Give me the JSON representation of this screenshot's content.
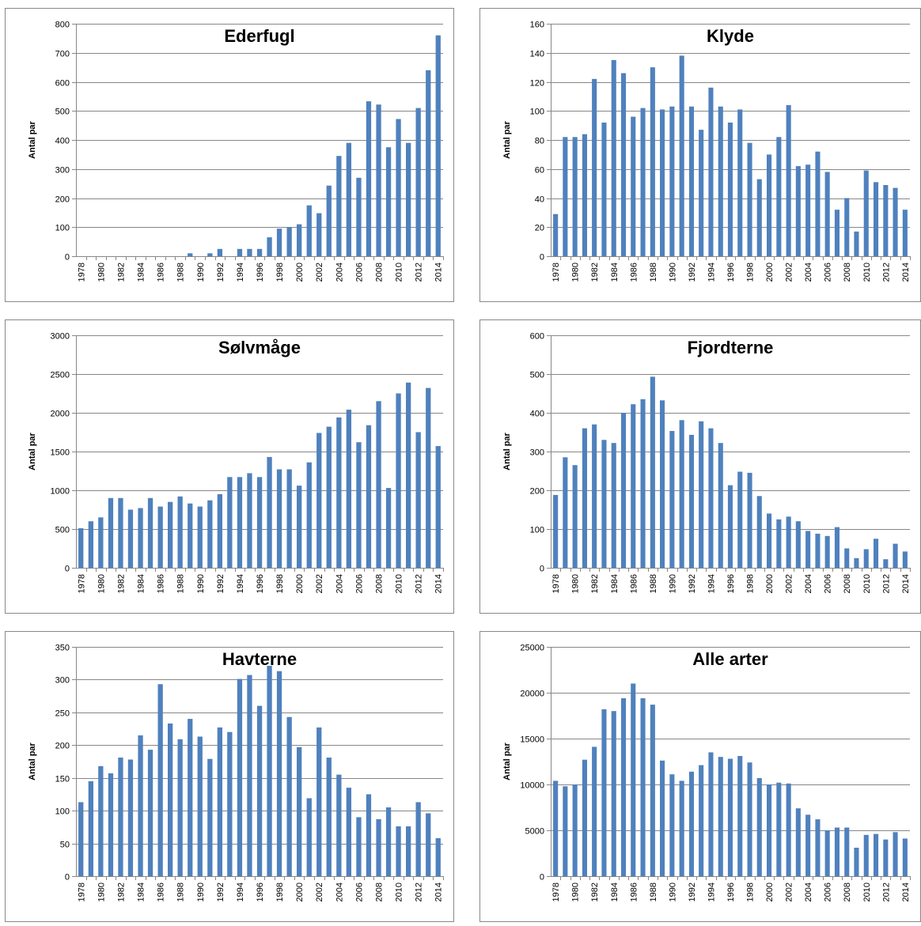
{
  "colors": {
    "bar": "#4f81bd",
    "grid": "#878787",
    "axis": "#878787",
    "frame": "#888888",
    "text": "#000000"
  },
  "ylabel_text": "Antal par",
  "chart_data": [
    {
      "type": "bar",
      "title": "Ederfugl",
      "xlabel": "",
      "ylabel": "Antal par",
      "ylim": [
        0,
        800
      ],
      "yticks": [
        0,
        100,
        200,
        300,
        400,
        500,
        600,
        700,
        800
      ],
      "x": [
        1978,
        1979,
        1980,
        1981,
        1982,
        1983,
        1984,
        1985,
        1986,
        1987,
        1988,
        1989,
        1990,
        1991,
        1992,
        1993,
        1994,
        1995,
        1996,
        1997,
        1998,
        1999,
        2000,
        2001,
        2002,
        2003,
        2004,
        2005,
        2006,
        2007,
        2008,
        2009,
        2010,
        2011,
        2012,
        2013,
        2014
      ],
      "xticklabels": [
        "1978",
        "1980",
        "1982",
        "1984",
        "1986",
        "1988",
        "1990",
        "1992",
        "1994",
        "1996",
        "1998",
        "2000",
        "2002",
        "2004",
        "2006",
        "2008",
        "2010",
        "2012",
        "2014"
      ],
      "values": [
        0,
        0,
        0,
        0,
        0,
        0,
        0,
        0,
        0,
        0,
        0,
        10,
        0,
        10,
        25,
        0,
        25,
        25,
        25,
        65,
        95,
        100,
        110,
        175,
        148,
        243,
        345,
        390,
        270,
        533,
        522,
        375,
        472,
        390,
        510,
        640,
        760
      ],
      "grid": true,
      "legend": "none"
    },
    {
      "type": "bar",
      "title": "Klyde",
      "xlabel": "",
      "ylabel": "Antal par",
      "ylim": [
        0,
        160
      ],
      "yticks": [
        0,
        20,
        40,
        60,
        80,
        100,
        120,
        140,
        160
      ],
      "x": [
        1978,
        1979,
        1980,
        1981,
        1982,
        1983,
        1984,
        1985,
        1986,
        1987,
        1988,
        1989,
        1990,
        1991,
        1992,
        1993,
        1994,
        1995,
        1996,
        1997,
        1998,
        1999,
        2000,
        2001,
        2002,
        2003,
        2004,
        2005,
        2006,
        2007,
        2008,
        2009,
        2010,
        2011,
        2012,
        2013,
        2014
      ],
      "xticklabels": [
        "1978",
        "1980",
        "1982",
        "1984",
        "1986",
        "1988",
        "1990",
        "1992",
        "1994",
        "1996",
        "1998",
        "2000",
        "2002",
        "2004",
        "2006",
        "2008",
        "2010",
        "2012",
        "2014"
      ],
      "values": [
        29,
        82,
        82,
        84,
        122,
        92,
        135,
        126,
        96,
        102,
        130,
        101,
        103,
        138,
        103,
        87,
        116,
        103,
        92,
        101,
        78,
        53,
        70,
        82,
        104,
        62,
        63,
        72,
        58,
        32,
        40,
        17,
        59,
        51,
        49,
        47,
        32
      ],
      "grid": true,
      "legend": "none"
    },
    {
      "type": "bar",
      "title": "Sølvmåge",
      "xlabel": "",
      "ylabel": "Antal par",
      "ylim": [
        0,
        3000
      ],
      "yticks": [
        0,
        500,
        1000,
        1500,
        2000,
        2500,
        3000
      ],
      "x": [
        1978,
        1979,
        1980,
        1981,
        1982,
        1983,
        1984,
        1985,
        1986,
        1987,
        1988,
        1989,
        1990,
        1991,
        1992,
        1993,
        1994,
        1995,
        1996,
        1997,
        1998,
        1999,
        2000,
        2001,
        2002,
        2003,
        2004,
        2005,
        2006,
        2007,
        2008,
        2009,
        2010,
        2011,
        2012,
        2013,
        2014
      ],
      "xticklabels": [
        "1978",
        "1980",
        "1982",
        "1984",
        "1986",
        "1988",
        "1990",
        "1992",
        "1994",
        "1996",
        "1998",
        "2000",
        "2002",
        "2004",
        "2006",
        "2008",
        "2010",
        "2012",
        "2014"
      ],
      "values": [
        510,
        600,
        650,
        900,
        900,
        750,
        770,
        900,
        790,
        850,
        920,
        830,
        790,
        870,
        950,
        1170,
        1170,
        1220,
        1170,
        1430,
        1270,
        1270,
        1060,
        1360,
        1740,
        1820,
        1940,
        2040,
        1620,
        1840,
        2150,
        1030,
        2250,
        2390,
        1750,
        2320,
        1570
      ],
      "grid": true,
      "legend": "none"
    },
    {
      "type": "bar",
      "title": "Fjordterne",
      "xlabel": "",
      "ylabel": "Antal par",
      "ylim": [
        0,
        600
      ],
      "yticks": [
        0,
        100,
        200,
        300,
        400,
        500,
        600
      ],
      "x": [
        1978,
        1979,
        1980,
        1981,
        1982,
        1983,
        1984,
        1985,
        1986,
        1987,
        1988,
        1989,
        1990,
        1991,
        1992,
        1993,
        1994,
        1995,
        1996,
        1997,
        1998,
        1999,
        2000,
        2001,
        2002,
        2003,
        2004,
        2005,
        2006,
        2007,
        2008,
        2009,
        2010,
        2011,
        2012,
        2013,
        2014
      ],
      "xticklabels": [
        "1978",
        "1980",
        "1982",
        "1984",
        "1986",
        "1988",
        "1990",
        "1992",
        "1994",
        "1996",
        "1998",
        "2000",
        "2002",
        "2004",
        "2006",
        "2008",
        "2010",
        "2012",
        "2014"
      ],
      "values": [
        188,
        285,
        265,
        360,
        370,
        330,
        322,
        400,
        422,
        435,
        493,
        432,
        353,
        381,
        343,
        378,
        360,
        322,
        213,
        248,
        245,
        185,
        140,
        125,
        132,
        120,
        95,
        88,
        82,
        105,
        50,
        25,
        48,
        75,
        22,
        62,
        42
      ],
      "grid": true,
      "legend": "none"
    },
    {
      "type": "bar",
      "title": "Havterne",
      "xlabel": "",
      "ylabel": "Antal par",
      "ylim": [
        0,
        350
      ],
      "yticks": [
        0,
        50,
        100,
        150,
        200,
        250,
        300,
        350
      ],
      "x": [
        1978,
        1979,
        1980,
        1981,
        1982,
        1983,
        1984,
        1985,
        1986,
        1987,
        1988,
        1989,
        1990,
        1991,
        1992,
        1993,
        1994,
        1995,
        1996,
        1997,
        1998,
        1999,
        2000,
        2001,
        2002,
        2003,
        2004,
        2005,
        2006,
        2007,
        2008,
        2009,
        2010,
        2011,
        2012,
        2013,
        2014
      ],
      "xticklabels": [
        "1978",
        "1980",
        "1982",
        "1984",
        "1986",
        "1988",
        "1990",
        "1992",
        "1994",
        "1996",
        "1998",
        "2000",
        "2002",
        "2004",
        "2006",
        "2008",
        "2010",
        "2012",
        "2014"
      ],
      "values": [
        113,
        145,
        168,
        157,
        181,
        178,
        215,
        193,
        293,
        233,
        209,
        240,
        213,
        179,
        227,
        220,
        301,
        307,
        260,
        321,
        313,
        243,
        197,
        119,
        227,
        181,
        155,
        135,
        90,
        125,
        87,
        105,
        76,
        76,
        113,
        96,
        58
      ],
      "grid": true,
      "legend": "none"
    },
    {
      "type": "bar",
      "title": "Alle arter",
      "xlabel": "",
      "ylabel": "Antal par",
      "ylim": [
        0,
        25000
      ],
      "yticks": [
        0,
        5000,
        10000,
        15000,
        20000,
        25000
      ],
      "x": [
        1978,
        1979,
        1980,
        1981,
        1982,
        1983,
        1984,
        1985,
        1986,
        1987,
        1988,
        1989,
        1990,
        1991,
        1992,
        1993,
        1994,
        1995,
        1996,
        1997,
        1998,
        1999,
        2000,
        2001,
        2002,
        2003,
        2004,
        2005,
        2006,
        2007,
        2008,
        2009,
        2010,
        2011,
        2012,
        2013,
        2014
      ],
      "xticklabels": [
        "1978",
        "1980",
        "1982",
        "1984",
        "1986",
        "1988",
        "1990",
        "1992",
        "1994",
        "1996",
        "1998",
        "2000",
        "2002",
        "2004",
        "2006",
        "2008",
        "2010",
        "2012",
        "2014"
      ],
      "values": [
        10400,
        9800,
        10000,
        12700,
        14100,
        18200,
        18000,
        19400,
        21000,
        19400,
        18700,
        12600,
        11100,
        10400,
        11400,
        12100,
        13500,
        13000,
        12800,
        13100,
        12400,
        10700,
        10000,
        10200,
        10100,
        7400,
        6700,
        6200,
        5000,
        5300,
        5300,
        3100,
        4500,
        4600,
        4000,
        4800,
        4100
      ],
      "grid": true,
      "legend": "none"
    }
  ]
}
